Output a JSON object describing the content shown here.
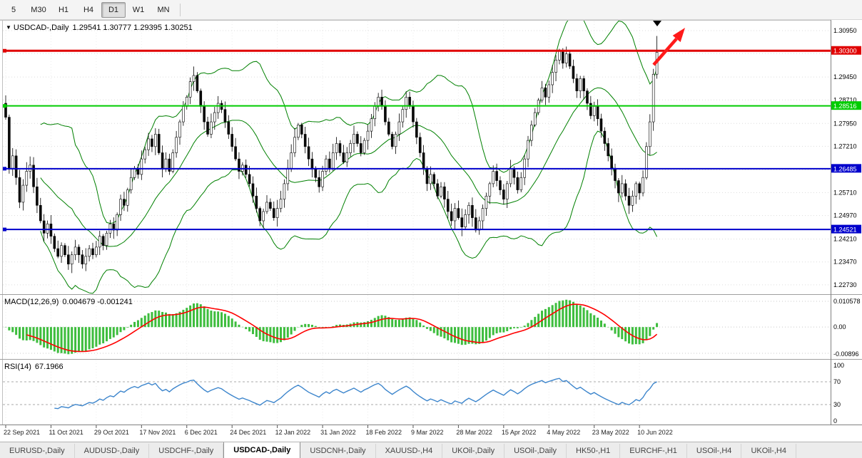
{
  "toolbar": {
    "timeframes": [
      {
        "label": "5",
        "active": false
      },
      {
        "label": "M30",
        "active": false
      },
      {
        "label": "H1",
        "active": false
      },
      {
        "label": "H4",
        "active": false
      },
      {
        "label": "D1",
        "active": true
      },
      {
        "label": "W1",
        "active": false
      },
      {
        "label": "MN",
        "active": false
      }
    ]
  },
  "chart": {
    "main_panel": {
      "marker": "▼",
      "title": "USDCAD-,Daily",
      "ohlc": "1.29541 1.30777 1.29395 1.30251"
    },
    "macd_panel": {
      "title": "MACD(12,26,9)",
      "values": "0.004679 -0.001241"
    },
    "rsi_panel": {
      "title": "RSI(14)",
      "value": "67.1966"
    },
    "price_axis": {
      "max": 1.3125,
      "min": 1.2245,
      "grid": [
        1.3095,
        1.3021,
        1.2945,
        1.2871,
        1.2795,
        1.2721,
        1.2645,
        1.2571,
        1.2497,
        1.2421,
        1.2347,
        1.2273
      ],
      "labels": [
        "1.30950",
        "1.29450",
        "1.28710",
        "1.27950",
        "1.27210",
        "1.25710",
        "1.24970",
        "1.24210",
        "1.23470",
        "1.22730"
      ]
    },
    "hlines": [
      {
        "price": 1.303,
        "label": "1.30300",
        "color": "#e00000",
        "width": 3
      },
      {
        "price": 1.28516,
        "label": "1.28516",
        "color": "#00cc00",
        "width": 2
      },
      {
        "price": 1.26485,
        "label": "1.26485",
        "color": "#0000cc",
        "width": 2
      },
      {
        "price": 1.24521,
        "label": "1.24521",
        "color": "#0000cc",
        "width": 2
      }
    ],
    "macd_axis_labels": [
      "0.010578",
      "0.00",
      "-0.00896"
    ],
    "rsi_axis_labels": [
      {
        "value": 100,
        "label": "100"
      },
      {
        "value": 70,
        "label": "70"
      },
      {
        "value": 30,
        "label": "30"
      },
      {
        "value": 0,
        "label": "0"
      }
    ],
    "colors": {
      "bull": "#ffffff",
      "bear": "#0a0a0a",
      "outline": "#000000",
      "bollinger": "#008000",
      "macd_histogram": "#3dbd3d",
      "macd_signal": "#ff0000",
      "rsi_line": "#3c85cc",
      "grid": "#dcdcdc",
      "vgrid": "#ececec",
      "arrow": "#ff1a1a"
    }
  },
  "chart_data": {
    "type": "candlestick",
    "symbol": "USDCAD-",
    "timeframe": "Daily",
    "title": "USDCAD-,Daily 1.29541 1.30777 1.29395 1.30251",
    "last_candle": {
      "open": 1.29541,
      "high": 1.30777,
      "low": 1.29395,
      "close": 1.30251
    },
    "open_first": 1.286,
    "closes": [
      1.2815,
      1.265,
      1.269,
      1.262,
      1.254,
      1.2595,
      1.264,
      1.266,
      1.259,
      1.253,
      1.248,
      1.244,
      1.247,
      1.243,
      1.239,
      1.2365,
      1.24,
      1.237,
      1.234,
      1.237,
      1.2395,
      1.237,
      1.234,
      1.2365,
      1.239,
      1.237,
      1.2395,
      1.243,
      1.24,
      1.244,
      1.247,
      1.245,
      1.25,
      1.255,
      1.253,
      1.258,
      1.262,
      1.265,
      1.263,
      1.268,
      1.271,
      1.2745,
      1.272,
      1.276,
      1.27,
      1.265,
      1.268,
      1.264,
      1.27,
      1.275,
      1.28,
      1.285,
      1.288,
      1.293,
      1.295,
      1.29,
      1.285,
      1.28,
      1.276,
      1.28,
      1.283,
      1.286,
      1.284,
      1.28,
      1.276,
      1.272,
      1.268,
      1.264,
      1.266,
      1.263,
      1.26,
      1.256,
      1.252,
      1.248,
      1.251,
      1.254,
      1.252,
      1.249,
      1.252,
      1.255,
      1.26,
      1.265,
      1.27,
      1.275,
      1.279,
      1.276,
      1.272,
      1.268,
      1.265,
      1.262,
      1.259,
      1.264,
      1.268,
      1.265,
      1.27,
      1.273,
      1.27,
      1.267,
      1.27,
      1.273,
      1.276,
      1.273,
      1.27,
      1.274,
      1.277,
      1.281,
      1.285,
      1.288,
      1.285,
      1.28,
      1.276,
      1.272,
      1.276,
      1.28,
      1.284,
      1.288,
      1.285,
      1.28,
      1.275,
      1.27,
      1.265,
      1.26,
      1.263,
      1.26,
      1.256,
      1.259,
      1.255,
      1.251,
      1.248,
      1.252,
      1.249,
      1.246,
      1.25,
      1.253,
      1.249,
      1.245,
      1.248,
      1.252,
      1.256,
      1.26,
      1.264,
      1.261,
      1.258,
      1.255,
      1.26,
      1.265,
      1.262,
      1.258,
      1.262,
      1.268,
      1.274,
      1.279,
      1.283,
      1.287,
      1.291,
      1.288,
      1.292,
      1.296,
      1.3,
      1.303,
      1.299,
      1.302,
      1.298,
      1.294,
      1.29,
      1.294,
      1.29,
      1.286,
      1.282,
      1.285,
      1.281,
      1.277,
      1.273,
      1.269,
      1.265,
      1.261,
      1.257,
      1.26,
      1.256,
      1.253,
      1.256,
      1.26,
      1.257,
      1.262,
      1.272,
      1.28,
      1.2954,
      1.30251
    ],
    "x_labels": [
      {
        "index": 0,
        "label": "22 Sep 2021"
      },
      {
        "index": 13,
        "label": "11 Oct 2021"
      },
      {
        "index": 26,
        "label": "29 Oct 2021"
      },
      {
        "index": 39,
        "label": "17 Nov 2021"
      },
      {
        "index": 52,
        "label": "6 Dec 2021"
      },
      {
        "index": 65,
        "label": "24 Dec 2021"
      },
      {
        "index": 78,
        "label": "12 Jan 2022"
      },
      {
        "index": 91,
        "label": "31 Jan 2022"
      },
      {
        "index": 104,
        "label": "18 Feb 2022"
      },
      {
        "index": 117,
        "label": "9 Mar 2022"
      },
      {
        "index": 130,
        "label": "28 Mar 2022"
      },
      {
        "index": 143,
        "label": "15 Apr 2022"
      },
      {
        "index": 156,
        "label": "4 May 2022"
      },
      {
        "index": 169,
        "label": "23 May 2022"
      },
      {
        "index": 182,
        "label": "10 Jun 2022"
      }
    ],
    "indicators": {
      "bollinger": {
        "period": 20,
        "deviation": 2
      },
      "macd": {
        "fast": 12,
        "slow": 26,
        "signal": 9
      },
      "rsi": {
        "period": 14
      }
    }
  },
  "tabs": [
    {
      "label": "EURUSD-,Daily",
      "active": false
    },
    {
      "label": "AUDUSD-,Daily",
      "active": false
    },
    {
      "label": "USDCHF-,Daily",
      "active": false
    },
    {
      "label": "USDCAD-,Daily",
      "active": true
    },
    {
      "label": "USDCNH-,Daily",
      "active": false
    },
    {
      "label": "XAUUSD-,H4",
      "active": false
    },
    {
      "label": "UKOil-,Daily",
      "active": false
    },
    {
      "label": "USOil-,Daily",
      "active": false
    },
    {
      "label": "HK50-,H1",
      "active": false
    },
    {
      "label": "EURCHF-,H1",
      "active": false
    },
    {
      "label": "USOil-,H4",
      "active": false
    },
    {
      "label": "UKOil-,H4",
      "active": false
    }
  ]
}
